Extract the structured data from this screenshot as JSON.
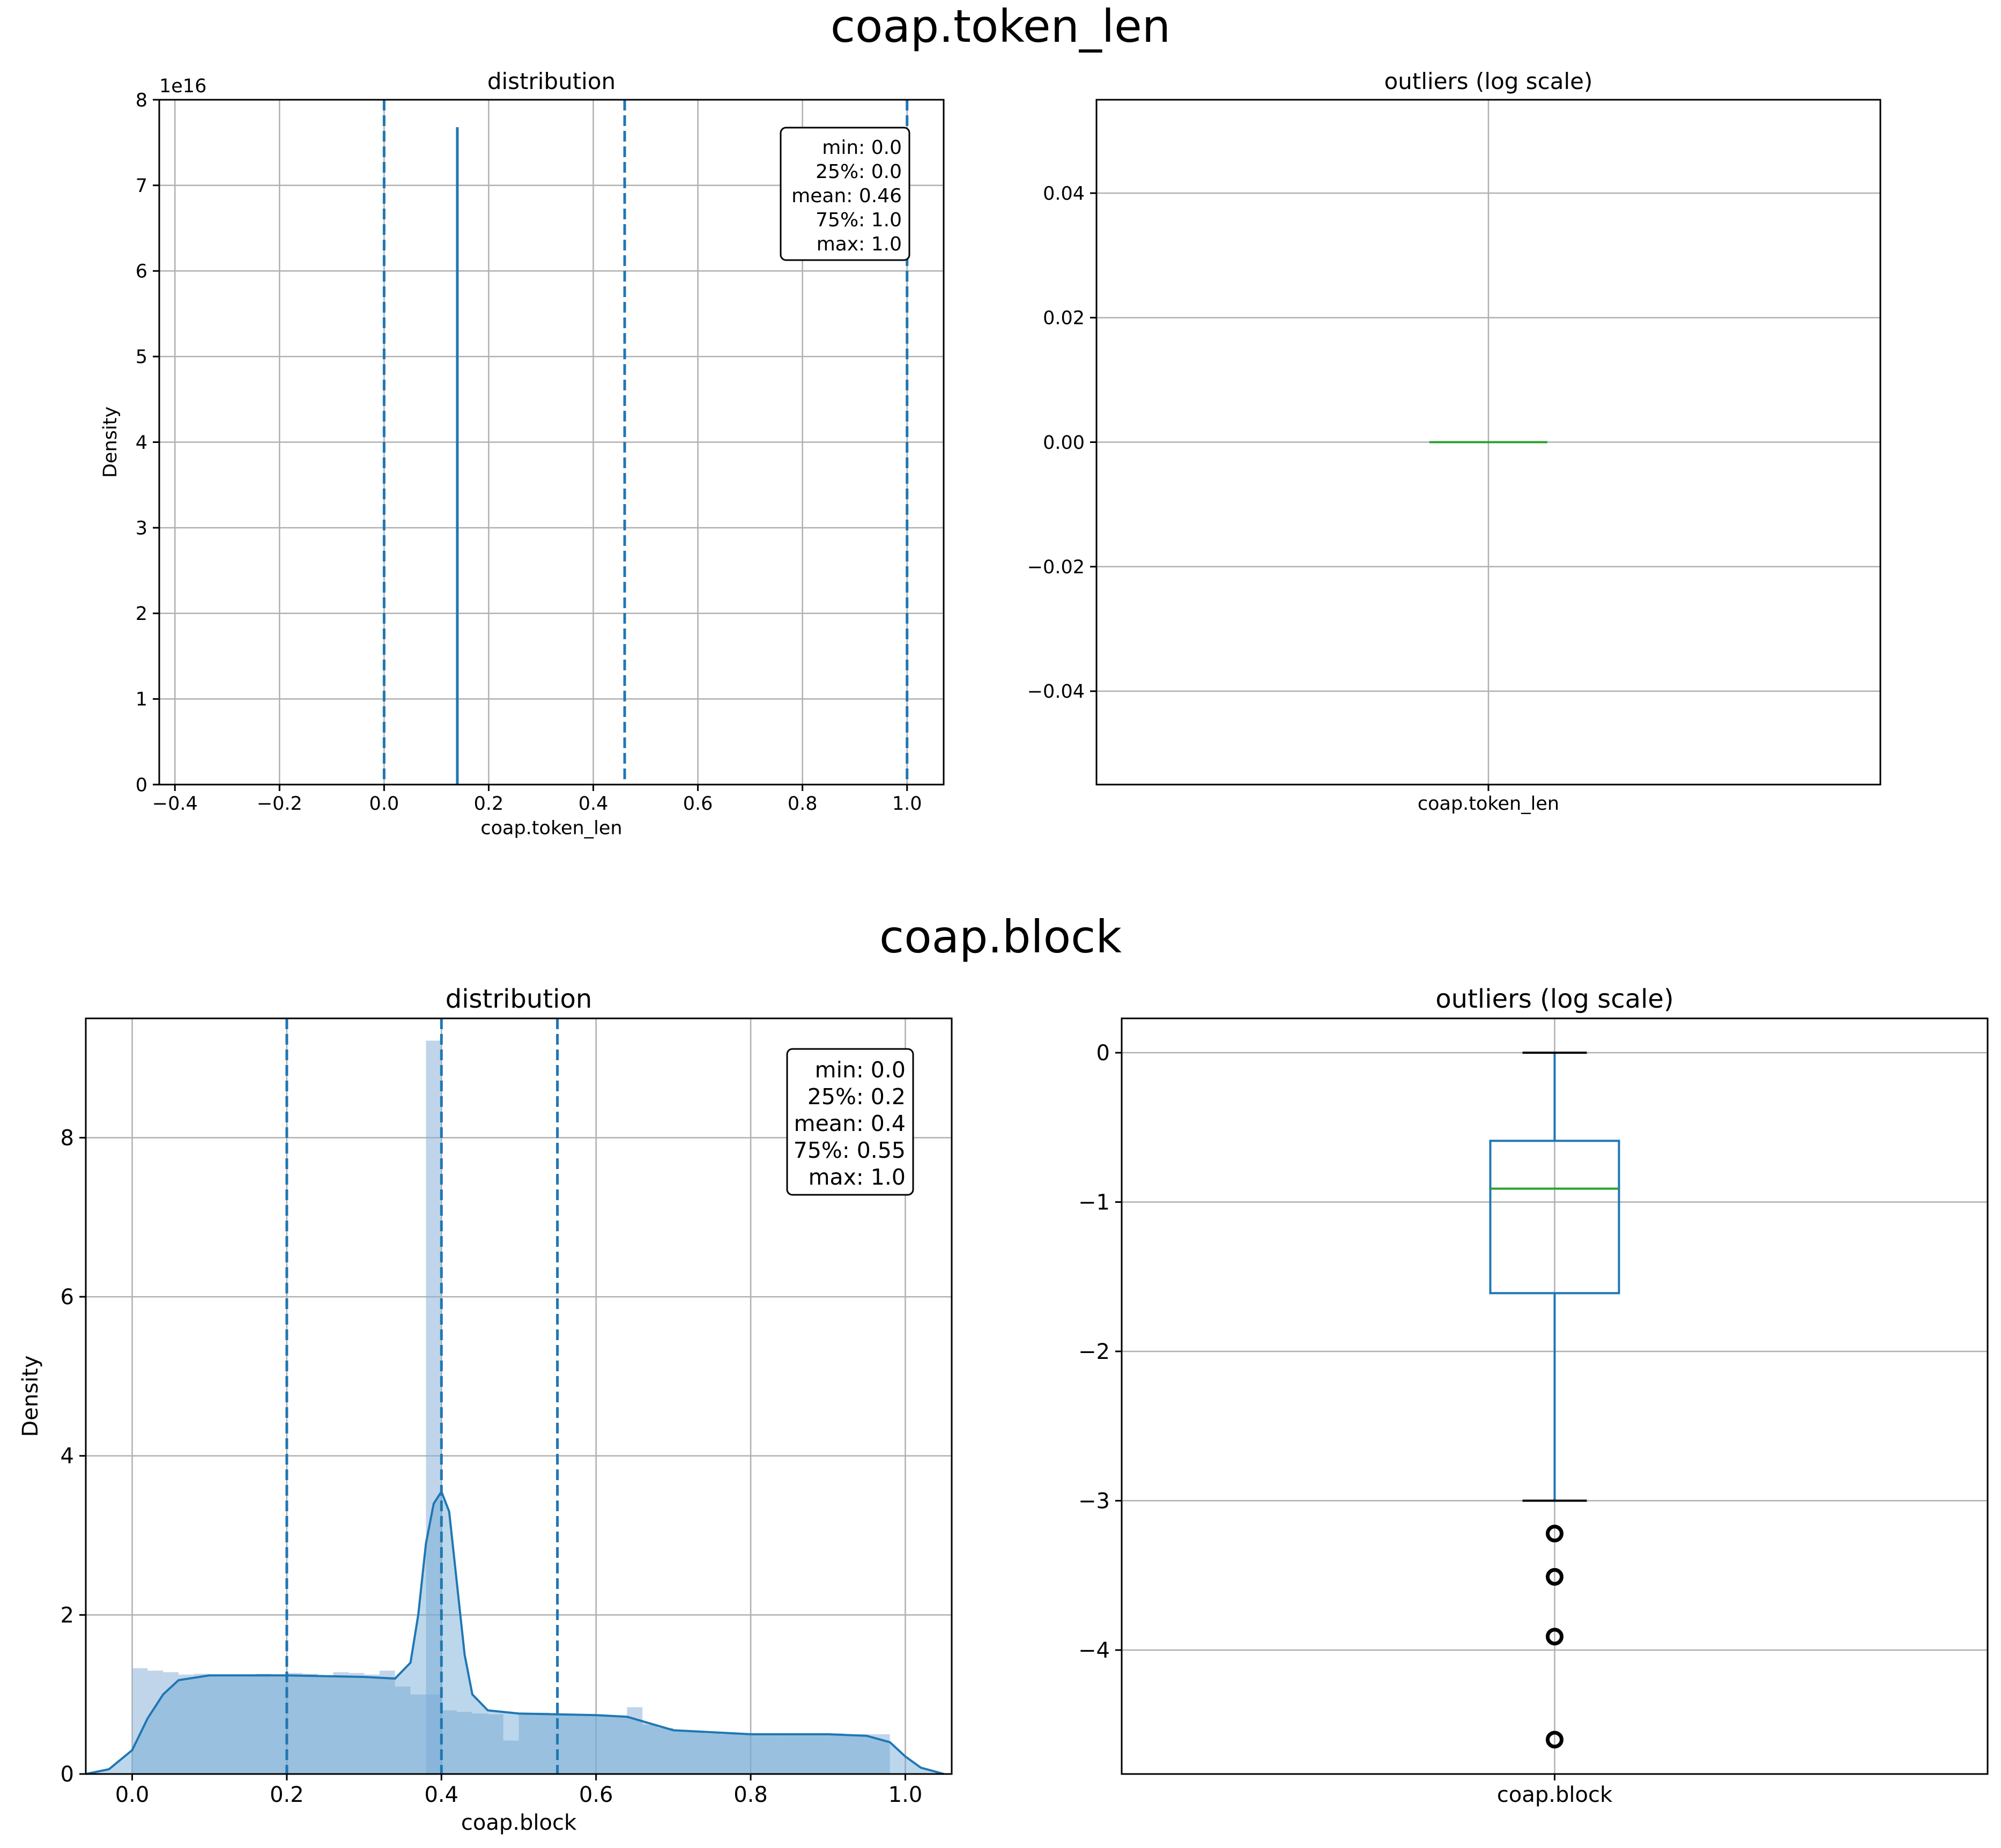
{
  "figures": [
    {
      "suptitle": "coap.token_len"
    },
    {
      "suptitle": "coap.block"
    }
  ],
  "colors": {
    "hist_fill": "#8cb3d9",
    "kde_fill": "#6aa6d3",
    "line": "#1f77b4",
    "grid": "#b0b0b0",
    "median": "#2ca02c",
    "whisker_cap": "#000000"
  },
  "chart_data": [
    {
      "type": "histogram",
      "title": "distribution",
      "xlabel": "coap.token_len",
      "ylabel": "Density",
      "y_multiplier": "1e16",
      "xlim": [
        -0.43,
        1.07
      ],
      "ylim": [
        0,
        8
      ],
      "xticks": [
        -0.4,
        -0.2,
        0.0,
        0.2,
        0.4,
        0.6,
        0.8,
        1.0
      ],
      "xtick_labels": [
        "−0.4",
        "−0.2",
        "0.0",
        "0.2",
        "0.4",
        "0.6",
        "0.8",
        "1.0"
      ],
      "yticks": [
        0,
        1,
        2,
        3,
        4,
        5,
        6,
        7,
        8
      ],
      "ytick_labels": [
        "0",
        "1",
        "2",
        "3",
        "4",
        "5",
        "6",
        "7",
        "8"
      ],
      "grid": true,
      "spike": {
        "x": 0.14,
        "y": 7.68
      },
      "vlines": [
        0.0,
        0.46,
        1.0
      ],
      "stats_box": [
        "min: 0.0",
        "25%: 0.0",
        "mean: 0.46",
        "75%: 1.0",
        "max: 1.0"
      ],
      "legend_position": "top-right"
    },
    {
      "type": "boxplot",
      "title": "outliers (log scale)",
      "category": "coap.token_len",
      "ylim": [
        -0.055,
        0.055
      ],
      "yticks": [
        -0.04,
        -0.02,
        0.0,
        0.02,
        0.04
      ],
      "ytick_labels": [
        "−0.04",
        "−0.02",
        "0.00",
        "0.02",
        "0.04"
      ],
      "grid": true,
      "box": {
        "q1": 0.0,
        "median": 0.0,
        "q3": 0.0,
        "whisker_low": 0.0,
        "whisker_high": 0.0
      },
      "outliers": []
    },
    {
      "type": "histogram",
      "title": "distribution",
      "xlabel": "coap.block",
      "ylabel": "Density",
      "xlim": [
        -0.06,
        1.06
      ],
      "ylim": [
        0,
        9.5
      ],
      "xticks": [
        0.0,
        0.2,
        0.4,
        0.6,
        0.8,
        1.0
      ],
      "xtick_labels": [
        "0.0",
        "0.2",
        "0.4",
        "0.6",
        "0.8",
        "1.0"
      ],
      "yticks": [
        0,
        2,
        4,
        6,
        8
      ],
      "ytick_labels": [
        "0",
        "2",
        "4",
        "6",
        "8"
      ],
      "grid": true,
      "bin_width": 0.02,
      "bins": [
        {
          "x": 0.0,
          "y": 1.33
        },
        {
          "x": 0.02,
          "y": 1.3
        },
        {
          "x": 0.04,
          "y": 1.28
        },
        {
          "x": 0.06,
          "y": 1.25
        },
        {
          "x": 0.08,
          "y": 1.26
        },
        {
          "x": 0.1,
          "y": 1.24
        },
        {
          "x": 0.12,
          "y": 1.25
        },
        {
          "x": 0.14,
          "y": 1.23
        },
        {
          "x": 0.16,
          "y": 1.26
        },
        {
          "x": 0.18,
          "y": 1.25
        },
        {
          "x": 0.2,
          "y": 1.27
        },
        {
          "x": 0.22,
          "y": 1.26
        },
        {
          "x": 0.24,
          "y": 1.24
        },
        {
          "x": 0.26,
          "y": 1.28
        },
        {
          "x": 0.28,
          "y": 1.27
        },
        {
          "x": 0.3,
          "y": 1.25
        },
        {
          "x": 0.32,
          "y": 1.3
        },
        {
          "x": 0.34,
          "y": 1.1
        },
        {
          "x": 0.36,
          "y": 1.0
        },
        {
          "x": 0.38,
          "y": 1.0
        },
        {
          "x": 0.38,
          "y": 9.22
        },
        {
          "x": 0.4,
          "y": 0.8
        },
        {
          "x": 0.42,
          "y": 0.78
        },
        {
          "x": 0.44,
          "y": 0.76
        },
        {
          "x": 0.46,
          "y": 0.75
        },
        {
          "x": 0.48,
          "y": 0.42
        },
        {
          "x": 0.5,
          "y": 0.76
        },
        {
          "x": 0.52,
          "y": 0.77
        },
        {
          "x": 0.54,
          "y": 0.75
        },
        {
          "x": 0.56,
          "y": 0.74
        },
        {
          "x": 0.58,
          "y": 0.73
        },
        {
          "x": 0.6,
          "y": 0.74
        },
        {
          "x": 0.62,
          "y": 0.72
        },
        {
          "x": 0.64,
          "y": 0.84
        },
        {
          "x": 0.66,
          "y": 0.62
        },
        {
          "x": 0.68,
          "y": 0.58
        },
        {
          "x": 0.7,
          "y": 0.55
        },
        {
          "x": 0.72,
          "y": 0.53
        },
        {
          "x": 0.74,
          "y": 0.51
        },
        {
          "x": 0.76,
          "y": 0.5
        },
        {
          "x": 0.78,
          "y": 0.5
        },
        {
          "x": 0.8,
          "y": 0.5
        },
        {
          "x": 0.82,
          "y": 0.5
        },
        {
          "x": 0.84,
          "y": 0.49
        },
        {
          "x": 0.86,
          "y": 0.5
        },
        {
          "x": 0.88,
          "y": 0.5
        },
        {
          "x": 0.9,
          "y": 0.51
        },
        {
          "x": 0.92,
          "y": 0.5
        },
        {
          "x": 0.94,
          "y": 0.5
        },
        {
          "x": 0.96,
          "y": 0.5
        }
      ],
      "kde": [
        [
          -0.06,
          0.0
        ],
        [
          -0.03,
          0.06
        ],
        [
          0.0,
          0.3
        ],
        [
          0.02,
          0.7
        ],
        [
          0.04,
          1.0
        ],
        [
          0.06,
          1.18
        ],
        [
          0.1,
          1.24
        ],
        [
          0.2,
          1.24
        ],
        [
          0.3,
          1.22
        ],
        [
          0.34,
          1.2
        ],
        [
          0.36,
          1.4
        ],
        [
          0.37,
          2.0
        ],
        [
          0.38,
          2.9
        ],
        [
          0.39,
          3.4
        ],
        [
          0.4,
          3.55
        ],
        [
          0.41,
          3.3
        ],
        [
          0.42,
          2.4
        ],
        [
          0.43,
          1.5
        ],
        [
          0.44,
          1.0
        ],
        [
          0.46,
          0.8
        ],
        [
          0.5,
          0.76
        ],
        [
          0.6,
          0.74
        ],
        [
          0.64,
          0.72
        ],
        [
          0.7,
          0.55
        ],
        [
          0.8,
          0.5
        ],
        [
          0.9,
          0.5
        ],
        [
          0.95,
          0.48
        ],
        [
          0.98,
          0.4
        ],
        [
          1.0,
          0.22
        ],
        [
          1.02,
          0.08
        ],
        [
          1.05,
          0.0
        ]
      ],
      "vlines": [
        0.2,
        0.4,
        0.55
      ],
      "stats_box": [
        "min: 0.0",
        "25%: 0.2",
        "mean: 0.4",
        "75%: 0.55",
        "max: 1.0"
      ],
      "legend_position": "top-right"
    },
    {
      "type": "boxplot",
      "title": "outliers (log scale)",
      "category": "coap.block",
      "ylim": [
        -4.83,
        0.23
      ],
      "yticks": [
        -4,
        -3,
        -2,
        -1,
        0
      ],
      "ytick_labels": [
        "−4",
        "−3",
        "−2",
        "−1",
        "0"
      ],
      "grid": true,
      "box": {
        "q1": -1.61,
        "median": -0.91,
        "q3": -0.59,
        "whisker_low": -3.0,
        "whisker_high": 0.0
      },
      "outliers": [
        -3.22,
        -3.51,
        -3.91,
        -4.6
      ]
    }
  ]
}
